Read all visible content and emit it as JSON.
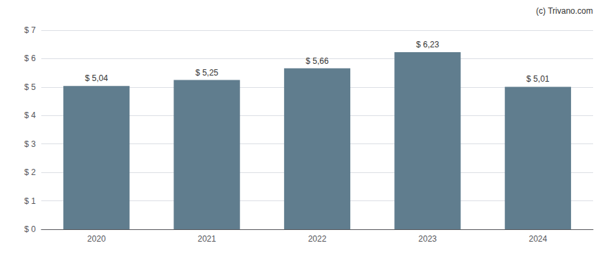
{
  "chart_data": {
    "type": "bar",
    "categories": [
      "2020",
      "2021",
      "2022",
      "2023",
      "2024"
    ],
    "values": [
      5.04,
      5.25,
      5.66,
      6.23,
      5.01
    ],
    "value_labels": [
      "$ 5,04",
      "$ 5,25",
      "$ 5,66",
      "$ 6,23",
      "$ 5,01"
    ],
    "color": "#607d8e",
    "ylim": [
      0,
      7
    ],
    "yticks": [
      {
        "value": 0,
        "label": "$ 0"
      },
      {
        "value": 1,
        "label": "$ 1"
      },
      {
        "value": 2,
        "label": "$ 2"
      },
      {
        "value": 3,
        "label": "$ 3"
      },
      {
        "value": 4,
        "label": "$ 4"
      },
      {
        "value": 5,
        "label": "$ 5"
      },
      {
        "value": 6,
        "label": "$ 6"
      },
      {
        "value": 7,
        "label": "$ 7"
      }
    ],
    "grid": true,
    "data_labels": true,
    "annotations": [
      "(c) Trivano.com"
    ]
  }
}
